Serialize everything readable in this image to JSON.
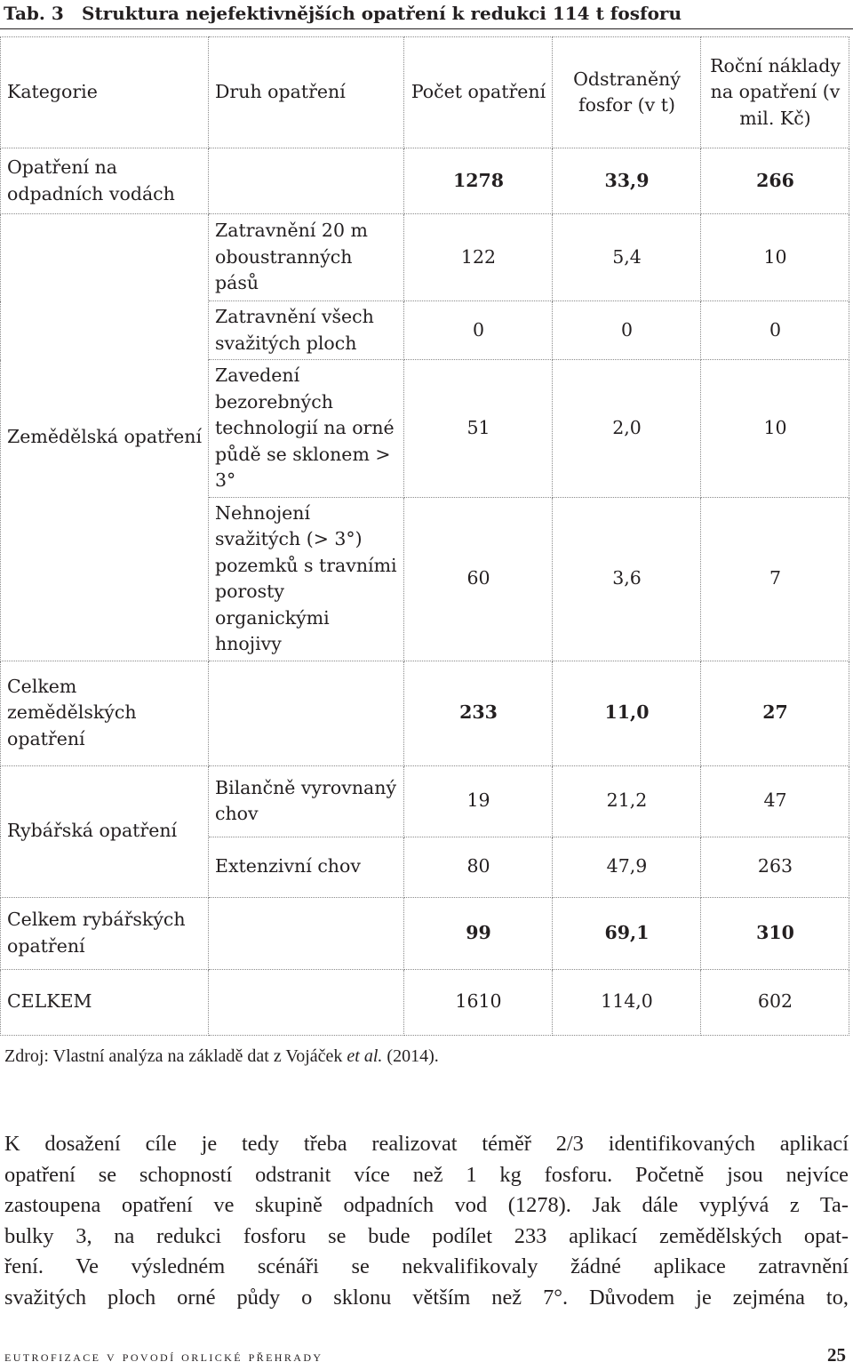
{
  "caption": {
    "label": "Tab. 3",
    "title": "Struktura nejefektivnějších opatření k redukci 114 t fosforu"
  },
  "table": {
    "headers": {
      "category": "Kategorie",
      "measure": "Druh opatření",
      "count": "Počet opatření",
      "phosphorus": "Odstraněný fosfor (v t)",
      "cost": "Roční náklady na opatření (v mil. Kč)"
    },
    "rows": [
      {
        "category": "Opatření na odpadních vodách",
        "measure": "",
        "count": "1278",
        "phosphorus": "33,9",
        "cost": "266"
      },
      {
        "category": "Zemědělská opatření",
        "measure": "Zatravnění 20 m oboustranných pásů",
        "count": "122",
        "phosphorus": "5,4",
        "cost": "10"
      },
      {
        "category": "",
        "measure": "Zatravnění všech svažitých ploch",
        "count": "0",
        "phosphorus": "0",
        "cost": "0"
      },
      {
        "category": "",
        "measure": "Zavedení bezorebných technologií na orné půdě se sklonem > 3°",
        "count": "51",
        "phosphorus": "2,0",
        "cost": "10"
      },
      {
        "category": "",
        "measure": "Nehnojení svažitých (> 3°) pozemků s travními porosty organickými hnojivy",
        "count": "60",
        "phosphorus": "3,6",
        "cost": "7"
      },
      {
        "category": "Celkem zemědělských opatření",
        "measure": "",
        "count": "233",
        "phosphorus": "11,0",
        "cost": "27"
      },
      {
        "category": "Rybářská opatření",
        "measure": "Bilančně vyrovnaný chov",
        "count": "19",
        "phosphorus": "21,2",
        "cost": "47"
      },
      {
        "category": "",
        "measure": "Extenzivní chov",
        "count": "80",
        "phosphorus": "47,9",
        "cost": "263"
      },
      {
        "category": "Celkem rybářských opatření",
        "measure": "",
        "count": "99",
        "phosphorus": "69,1",
        "cost": "310"
      },
      {
        "category": "CELKEM",
        "measure": "",
        "count": "1610",
        "phosphorus": "114,0",
        "cost": "602"
      }
    ]
  },
  "source": {
    "prefix": "Zdroj: Vlastní analýza na základě dat z Vojáček ",
    "italic": "et al.",
    "suffix": " (2014)."
  },
  "paragraph": {
    "lines": [
      "K dosažení cíle je tedy třeba realizovat téměř 2/3 identifikovaných aplikací",
      "opatření se schopností odstranit více než 1 kg fosforu. Početně jsou nejvíce",
      "zastoupena opatření ve skupině odpadních vod (1278). Jak dále vyplývá z Ta-",
      "bulky 3, na redukci fosforu se bude podílet 233 aplikací zemědělských opat-",
      "ření. Ve výsledném scénáři se nekvalifikovaly žádné aplikace zatravnění",
      "svažitých ploch orné půdy o sklonu větším než 7°. Důvodem je zejména to,"
    ]
  },
  "footer": {
    "title": "eutrofizace v povodí orlické přehrady",
    "page": "25"
  }
}
